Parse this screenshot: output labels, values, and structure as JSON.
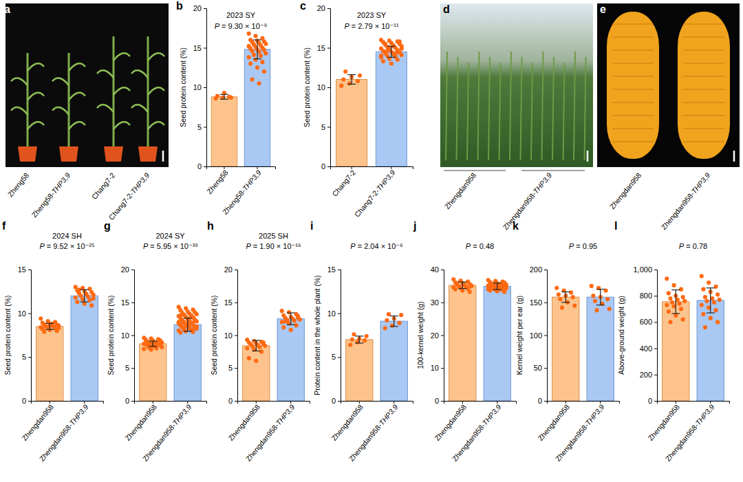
{
  "chart_data": [
    {
      "type": "bar",
      "panel": "b",
      "title": "2023 SY",
      "annotation": "P = 9.30 × 10⁻⁹",
      "y_label": "Seed protein content (%)",
      "categories": [
        "Zheng58",
        "Zheng58-THP3,9"
      ],
      "values": [
        8.8,
        14.8
      ],
      "errors": [
        0.3,
        1.2
      ],
      "points": [
        [
          8.6,
          8.7,
          8.8,
          8.9,
          9.3,
          8.7
        ],
        [
          16.8,
          16.5,
          16.2,
          16.0,
          15.9,
          15.8,
          15.7,
          15.6,
          15.5,
          15.4,
          15.3,
          15.2,
          15.1,
          15.0,
          14.9,
          14.8,
          14.7,
          14.6,
          14.5,
          14.3,
          14.1,
          14.0,
          13.8,
          13.5,
          13.2,
          13.0,
          12.5,
          12.0,
          11.0,
          10.5
        ]
      ],
      "colors": [
        "#fcc48c",
        "#a9c8f3"
      ],
      "ylim": [
        0,
        20
      ],
      "yticks": [
        0,
        5,
        10,
        15,
        20
      ]
    },
    {
      "type": "bar",
      "panel": "c",
      "title": "2023 SY",
      "annotation": "P = 2.79 × 10⁻¹¹",
      "y_label": "Seed protein content (%)",
      "categories": [
        "Chang7-2",
        "Chang7-2-THP3,9"
      ],
      "values": [
        11.0,
        14.5
      ],
      "errors": [
        0.6,
        0.7
      ],
      "points": [
        [
          10.2,
          10.5,
          10.8,
          11.0,
          11.3,
          11.5,
          12.0
        ],
        [
          16.0,
          15.9,
          15.8,
          15.7,
          15.6,
          15.5,
          15.4,
          15.3,
          15.2,
          15.1,
          15.0,
          14.9,
          14.8,
          14.7,
          14.6,
          14.5,
          14.4,
          14.3,
          14.2,
          14.1,
          14.0,
          13.9,
          13.8,
          13.6,
          13.5,
          13.3,
          13.0,
          15.8,
          15.5,
          15.2,
          14.9,
          14.6,
          14.3,
          14.0,
          15.0,
          14.5
        ]
      ],
      "colors": [
        "#fcc48c",
        "#a9c8f3"
      ],
      "ylim": [
        0,
        20
      ],
      "yticks": [
        0,
        5,
        10,
        15,
        20
      ]
    },
    {
      "type": "bar",
      "panel": "f",
      "title": "2024 SH",
      "annotation": "P = 9.52 × 10⁻²⁵",
      "y_label": "Seed protein content (%)",
      "categories": [
        "Zhengdan958",
        "Zhengdan958-THP3,9"
      ],
      "values": [
        8.5,
        12.0
      ],
      "errors": [
        0.35,
        0.7
      ],
      "points": [
        [
          9.4,
          9.1,
          9.0,
          8.9,
          8.8,
          8.7,
          8.7,
          8.6,
          8.6,
          8.5,
          8.5,
          8.4,
          8.4,
          8.3,
          8.2,
          8.1,
          8.0,
          7.9,
          8.8,
          8.3
        ],
        [
          13.0,
          12.9,
          12.8,
          12.6,
          12.5,
          12.4,
          12.3,
          12.2,
          12.1,
          12.0,
          11.9,
          11.8,
          11.6,
          11.5,
          11.3,
          11.1,
          10.9,
          12.7,
          12.2,
          11.7
        ]
      ],
      "colors": [
        "#fcc48c",
        "#a9c8f3"
      ],
      "ylim": [
        0,
        15
      ],
      "yticks": [
        0,
        5,
        10,
        15
      ]
    },
    {
      "type": "bar",
      "panel": "g",
      "title": "2024 SY",
      "annotation": "P = 5.95 × 10⁻³³",
      "y_label": "Seed protein content (%)",
      "categories": [
        "Zhengdan958",
        "Zhengdan958-THP3,9"
      ],
      "values": [
        8.7,
        11.6
      ],
      "errors": [
        0.4,
        1.0
      ],
      "points": [
        [
          9.6,
          9.5,
          9.4,
          9.3,
          9.2,
          9.1,
          9.0,
          8.9,
          8.9,
          8.8,
          8.8,
          8.7,
          8.7,
          8.6,
          8.6,
          8.5,
          8.5,
          8.4,
          8.3,
          8.2,
          8.1,
          8.0,
          7.9,
          7.8,
          9.0,
          8.7,
          8.4,
          9.2,
          8.6,
          8.8
        ],
        [
          14.3,
          14.1,
          13.9,
          13.8,
          13.6,
          13.5,
          13.4,
          13.3,
          13.2,
          13.1,
          13.0,
          12.9,
          12.8,
          12.7,
          12.6,
          12.5,
          12.4,
          12.3,
          12.2,
          12.1,
          12.0,
          11.9,
          11.8,
          11.7,
          11.6,
          11.5,
          11.4,
          11.3,
          11.2,
          11.1,
          11.0,
          10.9,
          10.8,
          10.7,
          10.6,
          10.5,
          10.4,
          12.5,
          12.2,
          11.9,
          11.6,
          11.3,
          11.0,
          12.8,
          12.0,
          11.4,
          10.9,
          13.0,
          11.8,
          11.1
        ]
      ],
      "colors": [
        "#fcc48c",
        "#a9c8f3"
      ],
      "ylim": [
        0,
        20
      ],
      "yticks": [
        0,
        5,
        10,
        15,
        20
      ]
    },
    {
      "type": "bar",
      "panel": "h",
      "title": "2025 SH",
      "annotation": "P = 1.90 × 10⁻¹⁶",
      "y_label": "Seed protein content (%)",
      "categories": [
        "Zhengdan958",
        "Zhengdan958-THP3,9"
      ],
      "values": [
        8.4,
        12.5
      ],
      "errors": [
        0.8,
        0.9
      ],
      "points": [
        [
          9.3,
          9.1,
          9.0,
          8.9,
          8.8,
          8.7,
          8.6,
          8.5,
          8.4,
          8.3,
          8.2,
          8.0,
          7.8,
          7.5,
          6.5,
          6.1,
          8.9,
          8.6
        ],
        [
          13.7,
          13.5,
          13.2,
          13.0,
          12.8,
          12.7,
          12.6,
          12.5,
          12.4,
          12.3,
          12.2,
          12.0,
          11.8,
          11.5,
          11.2,
          10.8,
          12.9,
          12.1
        ]
      ],
      "colors": [
        "#fcc48c",
        "#a9c8f3"
      ],
      "ylim": [
        0,
        20
      ],
      "yticks": [
        0,
        5,
        10,
        15,
        20
      ]
    },
    {
      "type": "bar",
      "panel": "i",
      "annotation": "P = 2.04 × 10⁻⁶",
      "y_label": "Protein content in the whole plant (%)",
      "categories": [
        "Zhengdan958",
        "Zhengdan958-THP3,9"
      ],
      "values": [
        7.0,
        9.1
      ],
      "errors": [
        0.4,
        0.6
      ],
      "points": [
        [
          6.4,
          6.7,
          6.9,
          7.0,
          7.1,
          7.4,
          7.6
        ],
        [
          8.3,
          8.6,
          8.9,
          9.2,
          9.4,
          9.8,
          9.9
        ]
      ],
      "colors": [
        "#fcc48c",
        "#a9c8f3"
      ],
      "ylim": [
        0,
        15
      ],
      "yticks": [
        0,
        5,
        10,
        15
      ]
    },
    {
      "type": "bar",
      "panel": "j",
      "annotation": "P = 0.48",
      "y_label": "100-kernel weight (g)",
      "categories": [
        "Zhengdan958",
        "Zhengdan958-THP3,9"
      ],
      "values": [
        35.2,
        34.9
      ],
      "errors": [
        1.0,
        1.0
      ],
      "points": [
        [
          37.0,
          36.6,
          36.3,
          36.0,
          35.8,
          35.6,
          35.4,
          35.3,
          35.1,
          35.0,
          34.8,
          34.6,
          34.4,
          34.2,
          34.0,
          33.6,
          33.2,
          35.9,
          35.5,
          34.9
        ],
        [
          36.8,
          36.5,
          36.3,
          36.1,
          35.9,
          35.8,
          35.6,
          35.5,
          35.4,
          35.3,
          35.2,
          35.1,
          35.0,
          34.9,
          34.8,
          34.7,
          34.6,
          34.5,
          34.4,
          34.3,
          34.2,
          34.1,
          34.0,
          33.9,
          33.8,
          33.6,
          33.4,
          33.2,
          35.7,
          35.2,
          34.8,
          34.4,
          34.0,
          35.0,
          34.6,
          35.4,
          34.2,
          33.7,
          36.0,
          34.9
        ]
      ],
      "colors": [
        "#fcc48c",
        "#a9c8f3"
      ],
      "ylim": [
        0,
        40
      ],
      "yticks": [
        0,
        10,
        20,
        30,
        40
      ]
    },
    {
      "type": "bar",
      "panel": "k",
      "annotation": "P = 0.95",
      "y_label": "Kernel weight per ear (g)",
      "categories": [
        "Zhengdan958",
        "Zhengdan958-THP3,9"
      ],
      "values": [
        158,
        158
      ],
      "errors": [
        8,
        12
      ],
      "points": [
        [
          172,
          168,
          165,
          162,
          160,
          158,
          155,
          150,
          145,
          142
        ],
        [
          175,
          172,
          168,
          160,
          158,
          155,
          152,
          148,
          140,
          138
        ]
      ],
      "colors": [
        "#fcc48c",
        "#a9c8f3"
      ],
      "ylim": [
        0,
        200
      ],
      "yticks": [
        0,
        50,
        100,
        150,
        200
      ]
    },
    {
      "type": "bar",
      "panel": "l",
      "annotation": "P = 0.78",
      "y_label": "Above-ground weight (g)",
      "categories": [
        "Zhengdan958",
        "Zhengdan958-THP3,9"
      ],
      "values": [
        755,
        765
      ],
      "errors": [
        90,
        95
      ],
      "points": [
        [
          930,
          880,
          850,
          820,
          800,
          790,
          780,
          770,
          760,
          750,
          740,
          730,
          720,
          700,
          680,
          650,
          620,
          600
        ],
        [
          950,
          900,
          870,
          850,
          830,
          810,
          790,
          780,
          770,
          760,
          750,
          730,
          710,
          690,
          660,
          630,
          600,
          560
        ]
      ],
      "colors": [
        "#fcc48c",
        "#a9c8f3"
      ],
      "ylim": [
        0,
        1000
      ],
      "yticks": [
        0,
        200,
        400,
        600,
        800,
        {
          "value": 1000,
          "label": "1,000"
        }
      ]
    }
  ],
  "photos": [
    {
      "panel": "a",
      "labels": [
        "Zheng58",
        "Zheng58-THP3,9",
        "Chang7-2",
        "Chang7-2-THP3,9"
      ]
    },
    {
      "panel": "d",
      "labels": [
        "Zhengdan958",
        "Zhengdan958-THP3,9"
      ]
    },
    {
      "panel": "e",
      "labels": [
        "Zhengdan958",
        "Zhengdan958-THP3,9"
      ]
    }
  ]
}
